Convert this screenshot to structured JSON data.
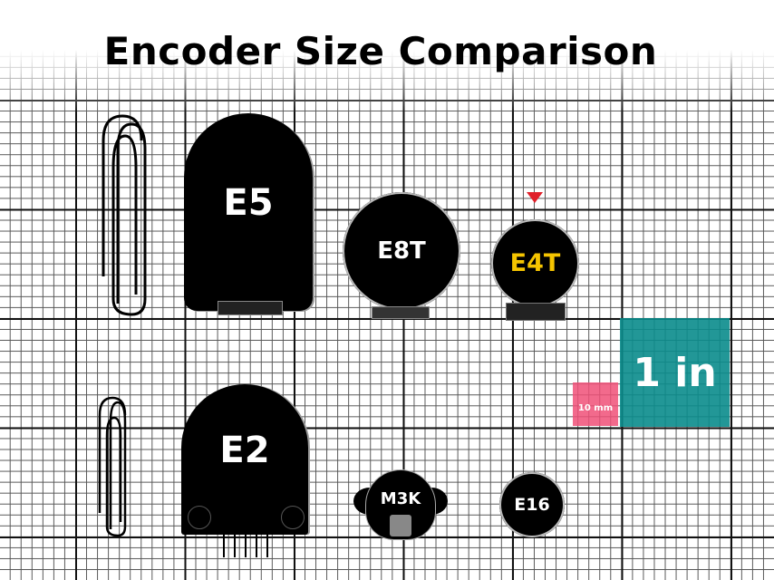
{
  "title": "Encoder Size Comparison",
  "encoders": {
    "e5": "E5",
    "e8t": "E8T",
    "e4t": "E4T",
    "e2": "E2",
    "m3k": "M3K",
    "e16": "E16"
  },
  "scale": {
    "metric_label": "10 mm",
    "imperial_label": "1 in"
  },
  "colors": {
    "highlight_text": "#f5c400",
    "marker": "#e0202a",
    "metric_square": "#f05078",
    "imperial_square": "#0a8c8c"
  }
}
